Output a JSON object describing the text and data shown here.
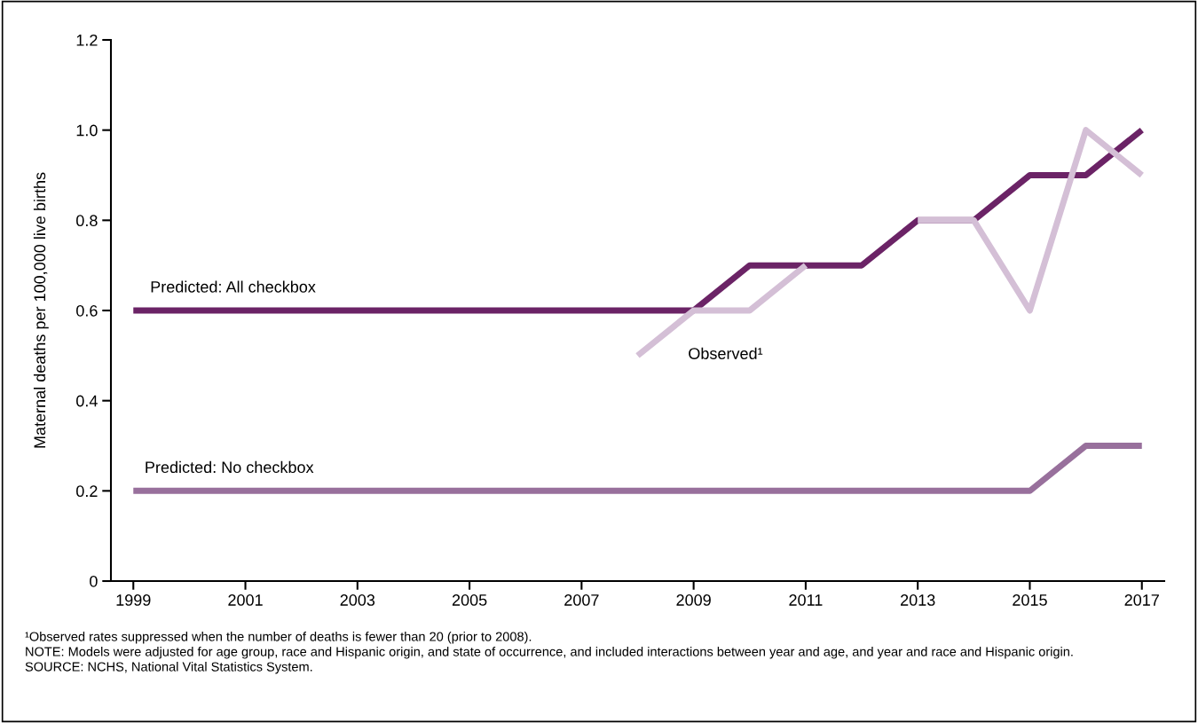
{
  "chart_data": {
    "type": "line",
    "ylabel": "Maternal deaths per 100,000 live births",
    "x": [
      1999,
      2000,
      2001,
      2002,
      2003,
      2004,
      2005,
      2006,
      2007,
      2008,
      2009,
      2010,
      2011,
      2012,
      2013,
      2014,
      2015,
      2016,
      2017
    ],
    "series": [
      {
        "name": "Predicted: All checkbox",
        "color": "#6b2366",
        "values": [
          0.6,
          0.6,
          0.6,
          0.6,
          0.6,
          0.6,
          0.6,
          0.6,
          0.6,
          0.6,
          0.6,
          0.7,
          0.7,
          0.7,
          0.8,
          0.8,
          0.9,
          0.9,
          1.0
        ]
      },
      {
        "name": "Predicted: No checkbox",
        "color": "#98709c",
        "values": [
          0.2,
          0.2,
          0.2,
          0.2,
          0.2,
          0.2,
          0.2,
          0.2,
          0.2,
          0.2,
          0.2,
          0.2,
          0.2,
          0.2,
          0.2,
          0.2,
          0.2,
          0.3,
          0.3
        ]
      },
      {
        "name": "Observed¹",
        "color": "#d4bfd6",
        "values": [
          null,
          null,
          null,
          null,
          null,
          null,
          null,
          null,
          null,
          0.5,
          0.6,
          0.6,
          0.7,
          null,
          0.8,
          0.8,
          0.6,
          1.0,
          0.9
        ]
      }
    ],
    "xlim": [
      1998.6,
      2017.4
    ],
    "xticks": [
      1999,
      2001,
      2003,
      2005,
      2007,
      2009,
      2011,
      2013,
      2015,
      2017
    ],
    "ylim": [
      0,
      1.2
    ],
    "yticks": [
      0,
      0.2,
      0.4,
      0.6,
      0.8,
      {
        "value": 1.0,
        "label": "1.0"
      },
      1.2
    ],
    "grid": false,
    "legend": false,
    "marker": "none",
    "line_style": "solid",
    "annotations": [
      "¹Observed rates suppressed when the number of deaths is fewer than 20 (prior to 2008).",
      "NOTE: Models were adjusted for age group, race and Hispanic origin, and state of occurrence, and included interactions between year and age, and year and race and Hispanic origin.",
      "SOURCE: NCHS, National Vital Statistics System."
    ]
  }
}
